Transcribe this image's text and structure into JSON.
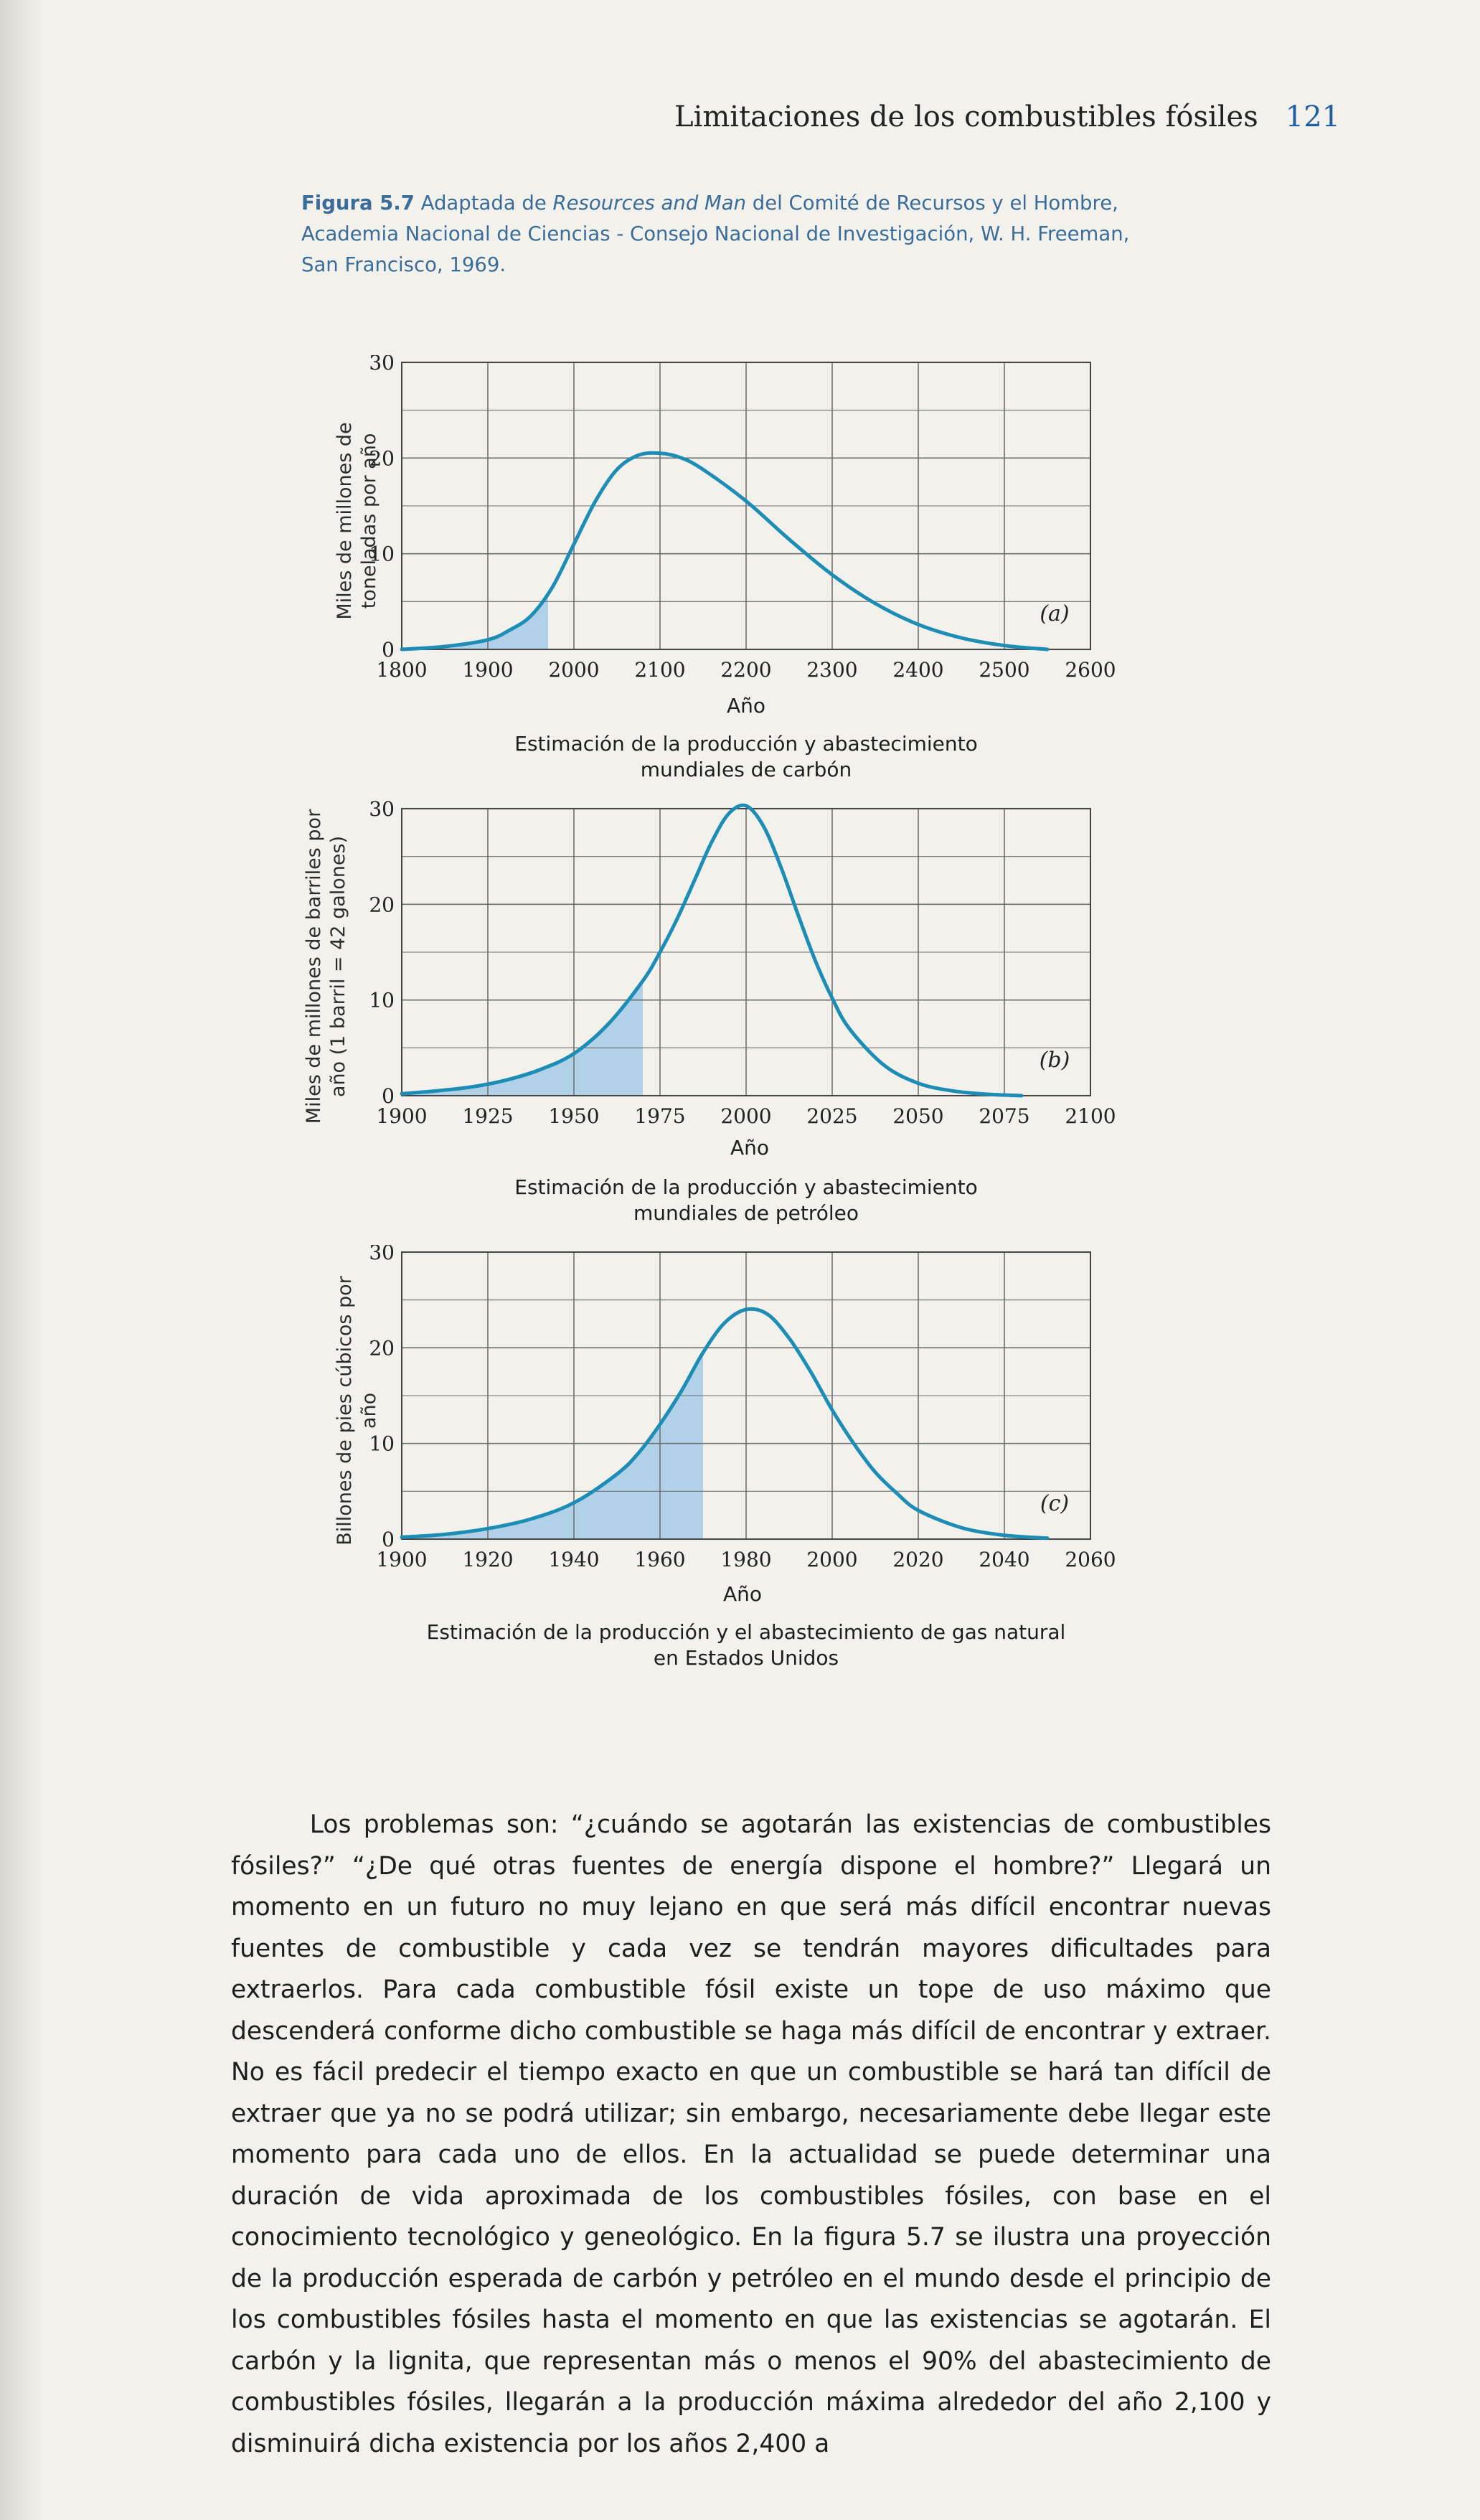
{
  "header": {
    "title": "Limitaciones de los combustibles fósiles",
    "page_number": "121"
  },
  "caption": {
    "label": "Figura 5.7",
    "text_before": " Adaptada de ",
    "source_title": "Resources and Man",
    "text_after": " del Comité de Recursos y el Hombre, Academia Nacional de Ciencias - Consejo Nacional de Investigación, W. H. Freeman, San Francisco, 1969."
  },
  "colors": {
    "curve": "#1d8db5",
    "fill": "#aacde8",
    "grid": "#6f6f6f",
    "caption": "#3a6c9a"
  },
  "chart_data": [
    {
      "type": "line",
      "panel": "(a)",
      "subtitle": "Estimación de la producción y abastecimiento mundiales de carbón",
      "xlabel": "Año",
      "ylabel": "Miles de millones de toneladas por año",
      "xlim": [
        1800,
        2600
      ],
      "ylim": [
        0,
        30
      ],
      "xticks": [
        1800,
        1900,
        2000,
        2100,
        2200,
        2300,
        2400,
        2500,
        2600
      ],
      "yticks": [
        0,
        10,
        20,
        30
      ],
      "shaded_until": 1970,
      "grid": true,
      "x": [
        1800,
        1850,
        1900,
        1925,
        1950,
        1975,
        2000,
        2025,
        2050,
        2075,
        2100,
        2125,
        2150,
        2200,
        2250,
        2300,
        2350,
        2400,
        2450,
        2500,
        2550
      ],
      "y": [
        0,
        0.3,
        1,
        2,
        3.5,
        6.5,
        11,
        15.5,
        18.8,
        20.3,
        20.5,
        20,
        18.8,
        15.5,
        11.5,
        7.8,
        4.8,
        2.6,
        1.2,
        0.4,
        0
      ]
    },
    {
      "type": "line",
      "panel": "(b)",
      "subtitle": "Estimación de la producción y abastecimiento mundiales de petróleo",
      "xlabel": "Año",
      "ylabel": "Miles de millones de barriles por año (1 barril = 42 galones)",
      "xlim": [
        1900,
        2100
      ],
      "ylim": [
        0,
        30
      ],
      "xticks": [
        1900,
        1925,
        1950,
        1975,
        2000,
        2025,
        2050,
        2075,
        2100
      ],
      "yticks": [
        0,
        10,
        20,
        30
      ],
      "shaded_until": 1970,
      "grid": true,
      "x": [
        1900,
        1910,
        1920,
        1930,
        1940,
        1950,
        1960,
        1970,
        1975,
        1980,
        1985,
        1990,
        1995,
        2000,
        2005,
        2010,
        2015,
        2020,
        2025,
        2030,
        2040,
        2050,
        2060,
        2070,
        2080
      ],
      "y": [
        0.2,
        0.5,
        0.9,
        1.6,
        2.7,
        4.4,
        7.5,
        12,
        15,
        18.5,
        22.5,
        26.5,
        29.5,
        30.3,
        28.2,
        24,
        19,
        14.2,
        10.2,
        7,
        3.2,
        1.3,
        0.5,
        0.15,
        0
      ]
    },
    {
      "type": "line",
      "panel": "(c)",
      "subtitle": "Estimación de la producción y el abastecimiento de gas natural en Estados Unidos",
      "xlabel": "Año",
      "ylabel": "Billones de pies cúbicos por año",
      "xlim": [
        1900,
        2060
      ],
      "ylim": [
        0,
        30
      ],
      "xticks": [
        1900,
        1920,
        1940,
        1960,
        1980,
        2000,
        2020,
        2040,
        2060
      ],
      "yticks": [
        0,
        10,
        20,
        30
      ],
      "shaded_until": 1970,
      "grid": true,
      "x": [
        1900,
        1910,
        1920,
        1930,
        1940,
        1950,
        1955,
        1960,
        1965,
        1970,
        1975,
        1980,
        1985,
        1990,
        1995,
        2000,
        2005,
        2010,
        2015,
        2020,
        2030,
        2040,
        2050
      ],
      "y": [
        0.2,
        0.5,
        1.1,
        2.1,
        3.8,
        6.8,
        9,
        12,
        15.5,
        19.5,
        22.6,
        24,
        23.5,
        21,
        17.5,
        13.5,
        10,
        7,
        4.8,
        3,
        1.2,
        0.4,
        0.1
      ]
    }
  ],
  "body": {
    "paragraph": "Los problemas son: “¿cuándo se agotarán las existencias de combustibles fósiles?” “¿De qué otras fuentes de energía dispone el hombre?” Llegará un momento en un futuro no muy lejano en que será más difícil encontrar nuevas fuentes de combustible y cada vez se tendrán mayores dificultades para extraerlos. Para cada combustible fósil existe un tope de uso máximo que descenderá conforme dicho combustible se haga más difícil de encontrar y extraer. No es fácil predecir el tiempo exacto en que un combustible se hará tan difícil de extraer que ya no se podrá utilizar; sin embargo, necesariamente debe llegar este momento para cada uno de ellos. En la actualidad se puede determinar una duración de vida aproximada de los combustibles fósiles, con base en el conocimiento tecnológico y geneológico. En la figura 5.7 se ilustra una proyección de la producción esperada de carbón y petróleo en el mundo desde el principio de los combustibles fósiles hasta el momento en que las existencias se agotarán. El carbón y la lignita, que representan más o menos el 90% del abastecimiento de combustibles fósiles, llegarán a la producción máxima alrededor del año 2,100 y disminuirá dicha existencia por los años 2,400 a"
  }
}
